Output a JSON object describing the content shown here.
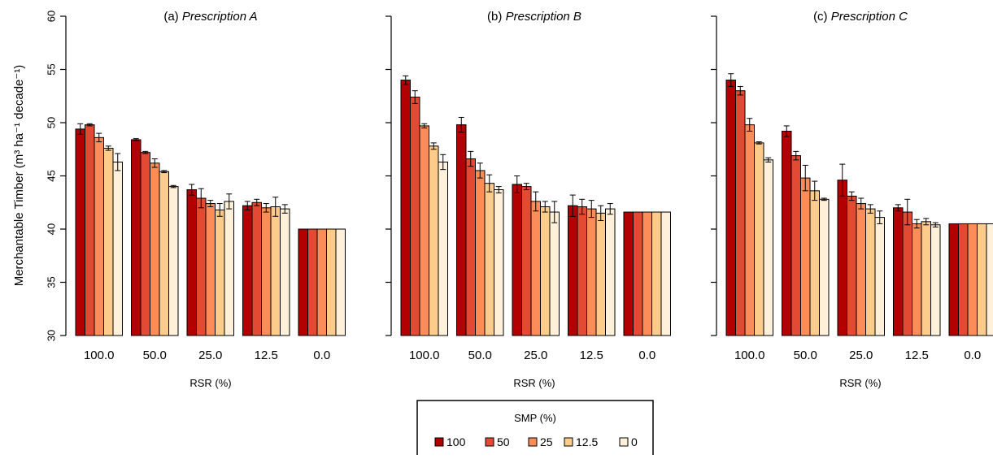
{
  "ylabel": "Merchantable Timber (m³ ha⁻¹ decade⁻¹)",
  "chart_data": [
    {
      "type": "bar",
      "panel_label": "(a)",
      "title": "Prescription A",
      "xlabel": "RSR (%)",
      "categories": [
        "100.0",
        "50.0",
        "25.0",
        "12.5",
        "0.0"
      ],
      "ylim": [
        30,
        60
      ],
      "yticks": [
        30,
        35,
        40,
        45,
        50,
        55,
        60
      ],
      "series": [
        {
          "name": "100",
          "values": [
            49.4,
            48.4,
            43.7,
            42.2,
            40.0
          ],
          "errors": [
            0.5,
            0.1,
            0.5,
            0.4,
            0
          ]
        },
        {
          "name": "50",
          "values": [
            49.8,
            47.2,
            42.9,
            42.5,
            40.0
          ],
          "errors": [
            0.1,
            0.1,
            0.9,
            0.3,
            0
          ]
        },
        {
          "name": "25",
          "values": [
            48.6,
            46.2,
            42.4,
            42.0,
            40.0
          ],
          "errors": [
            0.4,
            0.4,
            0.3,
            0.4,
            0
          ]
        },
        {
          "name": "12.5",
          "values": [
            47.6,
            45.4,
            41.8,
            42.1,
            40.0
          ],
          "errors": [
            0.2,
            0.1,
            0.6,
            0.9,
            0
          ]
        },
        {
          "name": "0",
          "values": [
            46.3,
            44.0,
            42.6,
            41.9,
            40.0
          ],
          "errors": [
            0.8,
            0.1,
            0.7,
            0.4,
            0
          ]
        }
      ]
    },
    {
      "type": "bar",
      "panel_label": "(b)",
      "title": "Prescription B",
      "xlabel": "RSR (%)",
      "categories": [
        "100.0",
        "50.0",
        "25.0",
        "12.5",
        "0.0"
      ],
      "ylim": [
        30,
        60
      ],
      "yticks": [
        30,
        35,
        40,
        45,
        50,
        55,
        60
      ],
      "series": [
        {
          "name": "100",
          "values": [
            54.0,
            49.8,
            44.2,
            42.2,
            41.6
          ],
          "errors": [
            0.4,
            0.7,
            0.8,
            1.0,
            0
          ]
        },
        {
          "name": "50",
          "values": [
            52.4,
            46.6,
            44.0,
            42.1,
            41.6
          ],
          "errors": [
            0.6,
            0.7,
            0.3,
            0.7,
            0
          ]
        },
        {
          "name": "25",
          "values": [
            49.7,
            45.5,
            42.6,
            41.9,
            41.6
          ],
          "errors": [
            0.2,
            0.7,
            0.9,
            0.8,
            0
          ]
        },
        {
          "name": "12.5",
          "values": [
            47.8,
            44.3,
            42.1,
            41.5,
            41.6
          ],
          "errors": [
            0.3,
            0.8,
            0.5,
            0.7,
            0
          ]
        },
        {
          "name": "0",
          "values": [
            46.3,
            43.7,
            41.6,
            41.9,
            41.6
          ],
          "errors": [
            0.7,
            0.3,
            1.0,
            0.5,
            0
          ]
        }
      ]
    },
    {
      "type": "bar",
      "panel_label": "(c)",
      "title": "Prescription C",
      "xlabel": "RSR (%)",
      "categories": [
        "100.0",
        "50.0",
        "25.0",
        "12.5",
        "0.0"
      ],
      "ylim": [
        30,
        60
      ],
      "yticks": [
        30,
        35,
        40,
        45,
        50,
        55,
        60
      ],
      "series": [
        {
          "name": "100",
          "values": [
            54.0,
            49.2,
            44.6,
            42.0,
            40.5
          ],
          "errors": [
            0.6,
            0.5,
            1.5,
            0.3,
            0
          ]
        },
        {
          "name": "50",
          "values": [
            53.0,
            46.9,
            43.1,
            41.6,
            40.5
          ],
          "errors": [
            0.4,
            0.4,
            0.4,
            1.2,
            0
          ]
        },
        {
          "name": "25",
          "values": [
            49.8,
            44.8,
            42.4,
            40.5,
            40.5
          ],
          "errors": [
            0.6,
            1.2,
            0.5,
            0.4,
            0
          ]
        },
        {
          "name": "12.5",
          "values": [
            48.1,
            43.6,
            41.9,
            40.7,
            40.5
          ],
          "errors": [
            0.1,
            0.9,
            0.4,
            0.3,
            0
          ]
        },
        {
          "name": "0",
          "values": [
            46.5,
            42.8,
            41.1,
            40.4,
            40.5
          ],
          "errors": [
            0.2,
            0.1,
            0.6,
            0.2,
            0
          ]
        }
      ]
    }
  ],
  "legend": {
    "title": "SMP (%)",
    "items": [
      {
        "label": "100",
        "color": "#b30000"
      },
      {
        "label": "50",
        "color": "#e34a33"
      },
      {
        "label": "25",
        "color": "#fc8d59"
      },
      {
        "label": "12.5",
        "color": "#fdcc8a"
      },
      {
        "label": "0",
        "color": "#fef0d9"
      }
    ]
  },
  "colors": {
    "series": [
      "#b30000",
      "#e34a33",
      "#fc8d59",
      "#fdcc8a",
      "#fef0d9"
    ],
    "axis": "#000000"
  }
}
